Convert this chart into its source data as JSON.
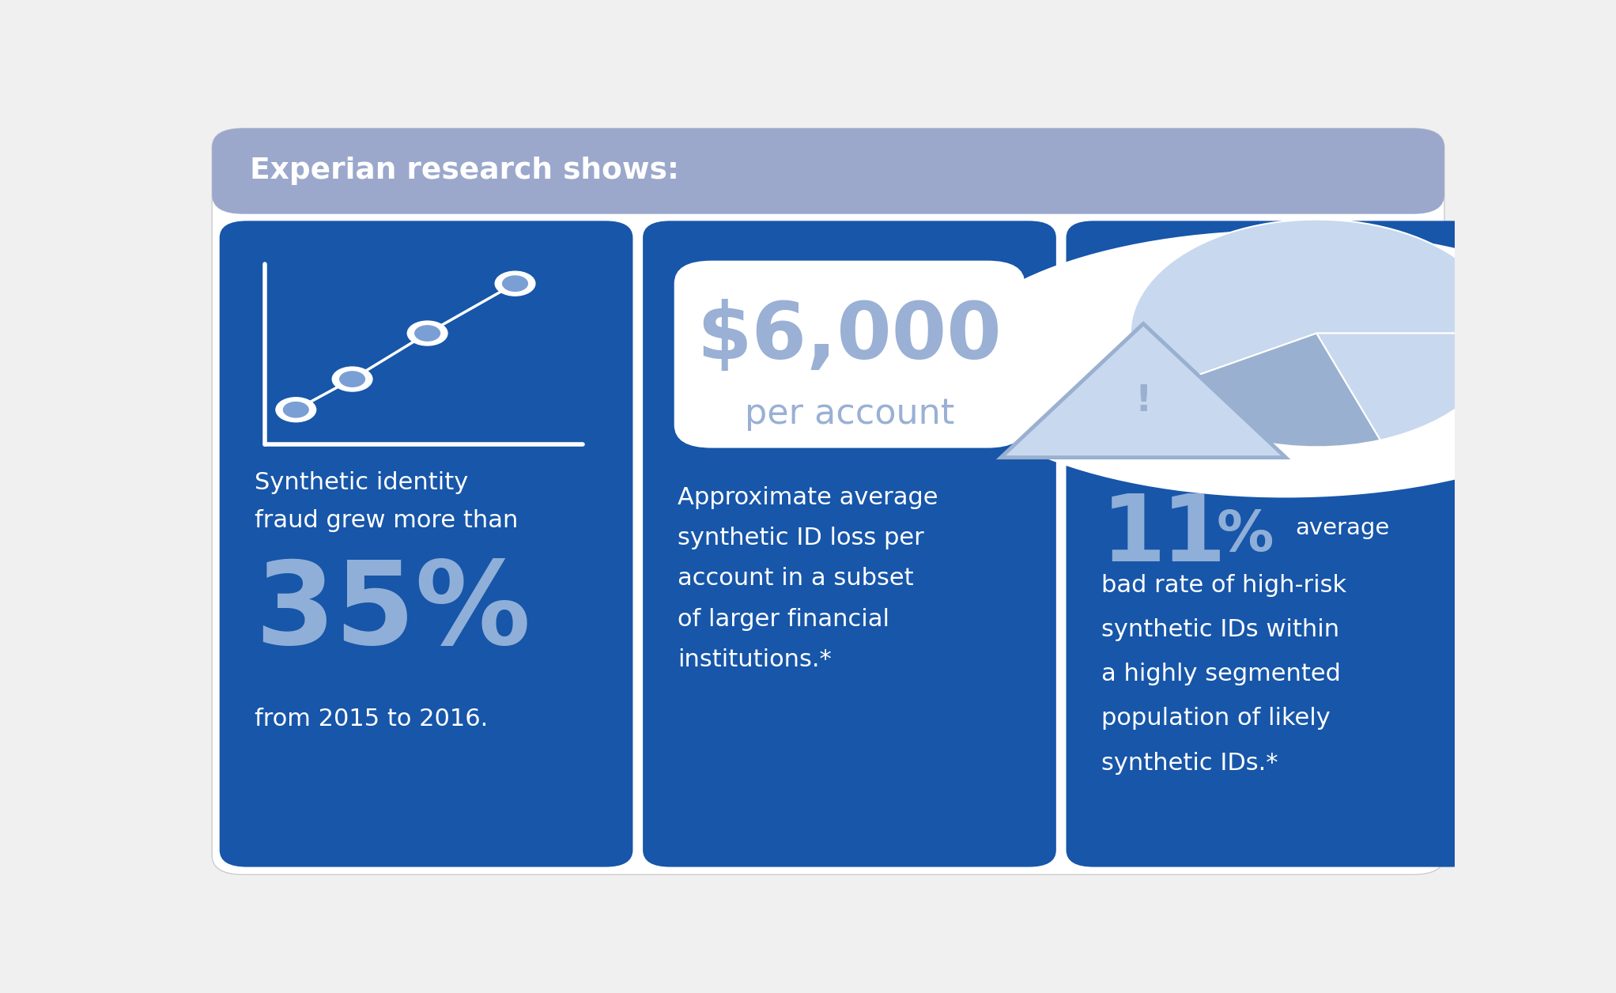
{
  "bg_color": "#f0f0f0",
  "header_color": "#9ba8cc",
  "header_text": "Experian research shows:",
  "header_text_color": "#ffffff",
  "panel_color": "#1756a9",
  "panel1": {
    "big_number": "35%",
    "big_number_color": "#8fafd8",
    "line1": "Synthetic identity",
    "line2": "fraud grew more than",
    "line3": "from 2015 to 2016.",
    "text_color": "#ffffff"
  },
  "panel2": {
    "box_color": "#ffffff",
    "big_number": "$6,000",
    "big_number_color": "#9ab0d4",
    "sub_text": "per account",
    "sub_text_color": "#9ab0d4",
    "desc_lines": [
      "Approximate average",
      "synthetic ID loss per",
      "account in a subset",
      "of larger financial",
      "institutions.*"
    ],
    "text_color": "#ffffff"
  },
  "panel3": {
    "big_number": "11%",
    "big_number_color": "#8fafd8",
    "desc_line1": "average",
    "desc_lines": [
      "bad rate of high-risk",
      "synthetic IDs within",
      "a highly segmented",
      "population of likely",
      "synthetic IDs.*"
    ],
    "text_color": "#ffffff"
  },
  "icon_color": "#ffffff",
  "icon_circle_color": "#7a9fd4",
  "pie_color_light": "#c8d8ee",
  "pie_color_mid": "#9ab0d0",
  "pie_color_dark": "#6a8abf",
  "warning_fill": "#c8d8ee",
  "warning_border": "#9ab0d0"
}
